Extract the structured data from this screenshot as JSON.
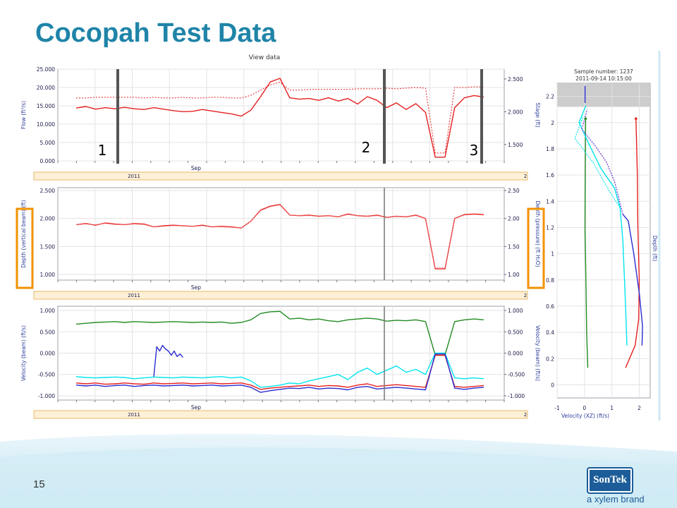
{
  "slide": {
    "title": "Cocopah Test Data",
    "page_number": "15",
    "logo_text": "SonTek",
    "brand_tagline": "a xylem brand",
    "marker_labels": [
      "1",
      "2",
      "3"
    ]
  },
  "chart_data": [
    {
      "type": "line",
      "title": "View data",
      "ylabel": "Flow (ft³/s)",
      "y2label": "Stage (ft)",
      "x_tick_label": "Sep",
      "x_year_labels": [
        "2011",
        "2"
      ],
      "ylim": [
        0,
        25
      ],
      "yticks": [
        "0.000",
        "5.000",
        "10.000",
        "15.000",
        "20.000",
        "25.000"
      ],
      "y2lim": [
        1.25,
        2.65
      ],
      "y2ticks": [
        "1.500",
        "2.000",
        "2.500"
      ],
      "series": [
        {
          "values": [
            14.4,
            14.8,
            14.1,
            14.5,
            14.2,
            14.6,
            14.2,
            14.0,
            14.5,
            14.1,
            13.7,
            13.4,
            13.5,
            14.0,
            13.6,
            13.2,
            12.8,
            12.2,
            13.8,
            17.5,
            21.5,
            22.5,
            17.2,
            16.8,
            17.0,
            16.5,
            17.2,
            16.3,
            17.0,
            15.5,
            17.5,
            16.5,
            14.5,
            15.8,
            14.0,
            15.6,
            13.2,
            1.0,
            1.0,
            14.5,
            17.2,
            17.8,
            17.4
          ]
        },
        {
          "values": [
            2.21,
            2.21,
            2.22,
            2.22,
            2.22,
            2.22,
            2.22,
            2.21,
            2.22,
            2.21,
            2.21,
            2.22,
            2.21,
            2.21,
            2.22,
            2.22,
            2.21,
            2.21,
            2.25,
            2.33,
            2.41,
            2.45,
            2.33,
            2.33,
            2.34,
            2.34,
            2.34,
            2.34,
            2.34,
            2.35,
            2.35,
            2.35,
            2.36,
            2.35,
            2.36,
            2.37,
            2.36,
            1.37,
            1.37,
            2.37,
            2.37,
            2.38,
            2.38
          ]
        }
      ]
    },
    {
      "type": "line",
      "ylabel": "Depth (vertical beam) (ft)",
      "y2label": "Depth (pressure) (ft H₂O)",
      "x_tick_label": "Sep",
      "x_year_labels": [
        "2011",
        "2"
      ],
      "ylim": [
        0.9,
        2.55
      ],
      "yticks": [
        "1.000",
        "1.500",
        "2.000",
        "2.500"
      ],
      "y2ticks": [
        "1.00",
        "1.50",
        "2.00",
        "2.50"
      ],
      "series": [
        {
          "values": [
            1.89,
            1.91,
            1.88,
            1.92,
            1.9,
            1.89,
            1.91,
            1.9,
            1.85,
            1.87,
            1.88,
            1.87,
            1.86,
            1.88,
            1.85,
            1.86,
            1.85,
            1.83,
            1.95,
            2.15,
            2.22,
            2.25,
            2.06,
            2.05,
            2.06,
            2.04,
            2.05,
            2.03,
            2.08,
            2.05,
            2.04,
            2.06,
            2.02,
            2.04,
            2.03,
            2.06,
            2.0,
            1.1,
            1.1,
            2.0,
            2.07,
            2.08,
            2.07
          ]
        },
        {
          "values": [
            1.89,
            1.9,
            1.89,
            1.91,
            1.89,
            1.89,
            1.9,
            1.89,
            1.85,
            1.86,
            1.87,
            1.87,
            1.86,
            1.87,
            1.85,
            1.85,
            1.84,
            1.83,
            1.95,
            2.14,
            2.21,
            2.24,
            2.06,
            2.05,
            2.05,
            2.04,
            2.05,
            2.03,
            2.07,
            2.05,
            2.04,
            2.05,
            2.02,
            2.04,
            2.03,
            2.05,
            2.0,
            1.12,
            1.12,
            2.0,
            2.06,
            2.07,
            2.06
          ]
        }
      ]
    },
    {
      "type": "line",
      "ylabel": "Velocity (beam) (ft/s)",
      "y2label": "Velocity (beam) (ft/s)",
      "x_tick_label": "Sep",
      "x_year_labels": [
        "2011",
        "2"
      ],
      "ylim": [
        -1.1,
        1.1
      ],
      "yticks": [
        "-1.000",
        "-0.500",
        "0.000",
        "0.500",
        "1.000"
      ],
      "y2ticks": [
        "-1.000",
        "-0.500",
        "0.000",
        "0.500",
        "1.000"
      ],
      "series": [
        {
          "color": "#228b22",
          "values": [
            0.68,
            0.7,
            0.72,
            0.73,
            0.74,
            0.72,
            0.74,
            0.73,
            0.72,
            0.73,
            0.74,
            0.73,
            0.72,
            0.73,
            0.72,
            0.73,
            0.7,
            0.72,
            0.78,
            0.93,
            0.97,
            0.98,
            0.8,
            0.82,
            0.78,
            0.8,
            0.76,
            0.74,
            0.78,
            0.8,
            0.82,
            0.8,
            0.75,
            0.77,
            0.76,
            0.78,
            0.74,
            -0.05,
            -0.05,
            0.74,
            0.78,
            0.8,
            0.78
          ]
        },
        {
          "color": "#00e5ee",
          "values": [
            -0.55,
            -0.57,
            -0.58,
            -0.57,
            -0.56,
            -0.57,
            -0.6,
            -0.58,
            -0.56,
            -0.57,
            -0.58,
            -0.56,
            -0.57,
            -0.58,
            -0.56,
            -0.55,
            -0.58,
            -0.56,
            -0.65,
            -0.8,
            -0.78,
            -0.75,
            -0.7,
            -0.72,
            -0.65,
            -0.6,
            -0.55,
            -0.5,
            -0.62,
            -0.45,
            -0.35,
            -0.5,
            -0.4,
            -0.3,
            -0.45,
            -0.38,
            -0.5,
            0.0,
            0.0,
            -0.58,
            -0.6,
            -0.58,
            -0.6
          ]
        },
        {
          "color": "#e62020",
          "values": [
            -0.7,
            -0.72,
            -0.7,
            -0.73,
            -0.72,
            -0.7,
            -0.72,
            -0.73,
            -0.7,
            -0.72,
            -0.71,
            -0.7,
            -0.72,
            -0.71,
            -0.7,
            -0.72,
            -0.71,
            -0.7,
            -0.75,
            -0.85,
            -0.82,
            -0.8,
            -0.78,
            -0.77,
            -0.75,
            -0.78,
            -0.76,
            -0.77,
            -0.8,
            -0.75,
            -0.72,
            -0.78,
            -0.76,
            -0.74,
            -0.76,
            -0.78,
            -0.8,
            -0.05,
            -0.05,
            -0.78,
            -0.8,
            -0.78,
            -0.76
          ]
        },
        {
          "color": "#2b2bd0",
          "values": [
            -0.75,
            -0.77,
            -0.75,
            -0.78,
            -0.76,
            -0.75,
            -0.78,
            -0.76,
            -0.75,
            -0.77,
            -0.76,
            -0.75,
            -0.77,
            -0.76,
            -0.75,
            -0.77,
            -0.76,
            -0.75,
            -0.8,
            -0.92,
            -0.88,
            -0.85,
            -0.82,
            -0.83,
            -0.8,
            -0.84,
            -0.82,
            -0.83,
            -0.86,
            -0.8,
            -0.78,
            -0.84,
            -0.82,
            -0.8,
            -0.82,
            -0.84,
            -0.86,
            -0.02,
            -0.02,
            -0.82,
            -0.85,
            -0.82,
            -0.8
          ]
        },
        {
          "color": "#2b2bd0",
          "x_range": [
            8,
            11
          ],
          "values": [
            -0.55,
            0.15,
            0.05,
            0.18,
            0.1,
            0.05,
            -0.05,
            0.05,
            -0.08,
            -0.02,
            -0.1
          ]
        }
      ]
    },
    {
      "type": "line",
      "title": "Sample number: 1237",
      "subtitle": "2011-09-14 10:15:00",
      "xlabel": "Velocity (XZ) (ft/s)",
      "ylabel": "Depth (ft)",
      "xlim": [
        -1,
        2.4
      ],
      "xticks": [
        "-1",
        "0",
        "1",
        "2"
      ],
      "ylim": [
        -0.1,
        2.3
      ],
      "yticks": [
        "0",
        "0.2",
        "0.4",
        "0.6",
        "0.8",
        "1",
        "1.2",
        "1.4",
        "1.6",
        "1.8",
        "2",
        "2.2"
      ],
      "series": [
        {
          "color": "#228b22",
          "points": [
            [
              0.12,
              0.13
            ],
            [
              0.08,
              0.4
            ],
            [
              0.05,
              0.8
            ],
            [
              0.02,
              1.2
            ],
            [
              0.03,
              1.6
            ],
            [
              0.04,
              2.03
            ]
          ]
        },
        {
          "color": "#e62020",
          "points": [
            [
              1.5,
              0.13
            ],
            [
              1.85,
              0.3
            ],
            [
              1.98,
              0.5
            ],
            [
              2.0,
              0.8
            ],
            [
              1.95,
              1.2
            ],
            [
              1.93,
              1.6
            ],
            [
              1.88,
              2.03
            ]
          ]
        },
        {
          "color": "#00e5ee",
          "points": [
            [
              1.55,
              0.3
            ],
            [
              1.5,
              0.6
            ],
            [
              1.4,
              1.1
            ],
            [
              1.3,
              1.35
            ],
            [
              1.1,
              1.5
            ],
            [
              0.6,
              1.65
            ],
            [
              0.2,
              1.82
            ],
            [
              -0.2,
              2.0
            ],
            [
              0.05,
              2.13
            ]
          ]
        },
        {
          "color": "#2b2bd0",
          "points": [
            [
              2.1,
              0.3
            ],
            [
              2.12,
              0.45
            ],
            [
              2.0,
              0.7
            ],
            [
              1.8,
              1.0
            ],
            [
              1.6,
              1.25
            ],
            [
              1.4,
              1.3
            ]
          ]
        },
        {
          "color": "#7b4bd9",
          "points": [
            [
              1.4,
              1.3
            ],
            [
              1.1,
              1.55
            ],
            [
              0.8,
              1.7
            ],
            [
              0.4,
              1.82
            ],
            [
              -0.1,
              1.95
            ],
            [
              0.1,
              2.1
            ]
          ]
        },
        {
          "color": "#2b2bd0",
          "points": [
            [
              0.02,
              2.15
            ],
            [
              0.02,
              2.28
            ]
          ]
        }
      ]
    }
  ]
}
